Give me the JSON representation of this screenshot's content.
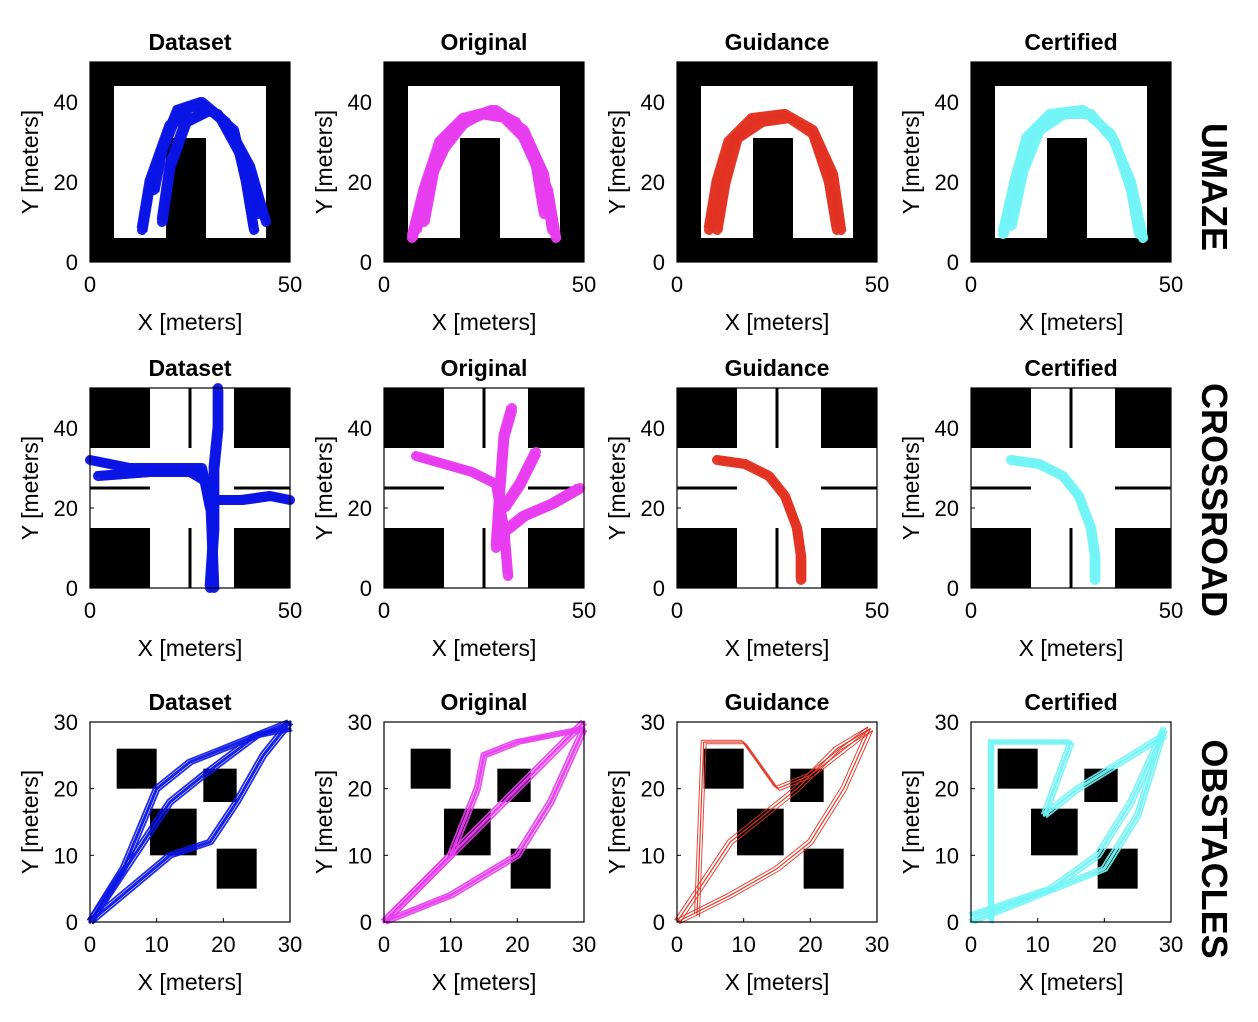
{
  "colors": {
    "dataset": "#0a14e6",
    "original": "#e83cf0",
    "guidance": "#e23222",
    "certified": "#72f4f6",
    "obstacle": "#000000"
  },
  "rows": [
    {
      "label": "UMAZE",
      "env": "umaze",
      "x_ticks": [
        "0",
        "50"
      ],
      "y_ticks": [
        "0",
        "20",
        "40"
      ],
      "xlim": [
        0,
        50
      ],
      "ylim": [
        0,
        50
      ]
    },
    {
      "label": "CROSSROAD",
      "env": "crossroad",
      "x_ticks": [
        "0",
        "50"
      ],
      "y_ticks": [
        "0",
        "20",
        "40"
      ],
      "xlim": [
        0,
        50
      ],
      "ylim": [
        0,
        50
      ]
    },
    {
      "label": "OBSTACLES",
      "env": "obstacles",
      "x_ticks": [
        "0",
        "10",
        "20",
        "30"
      ],
      "y_ticks": [
        "0",
        "10",
        "20",
        "30"
      ],
      "xlim": [
        0,
        30
      ],
      "ylim": [
        0,
        30
      ]
    }
  ],
  "chart_data": [
    {
      "type": "line",
      "environment": "UMAZE",
      "title": "Dataset",
      "series_color": "#0a14e6",
      "xlabel": "X [meters]",
      "ylabel": "Y [meters]",
      "xlim": [
        0,
        50
      ],
      "ylim": [
        0,
        50
      ],
      "obstacles": [
        [
          0,
          0,
          50,
          6
        ],
        [
          0,
          44,
          50,
          50
        ],
        [
          0,
          0,
          6,
          50
        ],
        [
          44,
          0,
          50,
          50
        ],
        [
          19,
          6,
          29,
          31
        ]
      ],
      "series": [
        {
          "x": [
            13,
            15,
            20,
            25,
            32,
            38,
            42
          ],
          "y": [
            8,
            20,
            34,
            39,
            37,
            26,
            12
          ]
        },
        {
          "x": [
            16,
            18,
            22,
            28,
            34,
            40,
            44
          ],
          "y": [
            18,
            28,
            38,
            40,
            35,
            24,
            10
          ]
        },
        {
          "x": [
            18,
            20,
            24,
            30,
            36,
            39,
            41
          ],
          "y": [
            10,
            24,
            35,
            38,
            33,
            20,
            8
          ]
        }
      ]
    },
    {
      "type": "line",
      "environment": "UMAZE",
      "title": "Original",
      "series_color": "#e83cf0",
      "xlabel": "X [meters]",
      "ylabel": "Y [meters]",
      "xlim": [
        0,
        50
      ],
      "ylim": [
        0,
        50
      ],
      "obstacles": [
        [
          0,
          0,
          50,
          6
        ],
        [
          0,
          44,
          50,
          50
        ],
        [
          0,
          0,
          6,
          50
        ],
        [
          44,
          0,
          50,
          50
        ],
        [
          19,
          6,
          29,
          31
        ]
      ],
      "series": [
        {
          "x": [
            7,
            10,
            14,
            20,
            28,
            35,
            40,
            42
          ],
          "y": [
            6,
            18,
            30,
            36,
            38,
            33,
            22,
            8
          ]
        },
        {
          "x": [
            8,
            12,
            17,
            24,
            30,
            36,
            41,
            43
          ],
          "y": [
            8,
            22,
            33,
            37,
            36,
            30,
            18,
            6
          ]
        },
        {
          "x": [
            10,
            13,
            20,
            27,
            33,
            38,
            40
          ],
          "y": [
            10,
            26,
            35,
            38,
            35,
            24,
            12
          ]
        }
      ]
    },
    {
      "type": "line",
      "environment": "UMAZE",
      "title": "Guidance",
      "series_color": "#e23222",
      "xlabel": "X [meters]",
      "ylabel": "Y [meters]",
      "xlim": [
        0,
        50
      ],
      "ylim": [
        0,
        50
      ],
      "obstacles": [
        [
          0,
          0,
          50,
          6
        ],
        [
          0,
          44,
          50,
          50
        ],
        [
          0,
          0,
          6,
          50
        ],
        [
          44,
          0,
          50,
          50
        ],
        [
          19,
          6,
          29,
          31
        ]
      ],
      "series": [
        {
          "x": [
            8,
            10,
            13,
            19,
            27,
            34,
            39,
            41
          ],
          "y": [
            8,
            20,
            30,
            36,
            37,
            33,
            22,
            8
          ]
        },
        {
          "x": [
            10,
            12,
            15,
            21,
            28,
            34,
            38,
            40
          ],
          "y": [
            8,
            20,
            31,
            35,
            36,
            32,
            20,
            8
          ]
        }
      ]
    },
    {
      "type": "line",
      "environment": "UMAZE",
      "title": "Certified",
      "series_color": "#72f4f6",
      "xlabel": "X [meters]",
      "ylabel": "Y [meters]",
      "xlim": [
        0,
        50
      ],
      "ylim": [
        0,
        50
      ],
      "obstacles": [
        [
          0,
          0,
          50,
          6
        ],
        [
          0,
          44,
          50,
          50
        ],
        [
          0,
          0,
          6,
          50
        ],
        [
          44,
          0,
          50,
          50
        ],
        [
          19,
          6,
          29,
          31
        ]
      ],
      "series": [
        {
          "x": [
            8,
            11,
            14,
            20,
            28,
            35,
            40,
            43
          ],
          "y": [
            7,
            20,
            31,
            37,
            38,
            32,
            20,
            6
          ]
        },
        {
          "x": [
            10,
            13,
            17,
            23,
            30,
            36,
            40,
            42
          ],
          "y": [
            9,
            23,
            33,
            37,
            37,
            30,
            18,
            7
          ]
        }
      ]
    },
    {
      "type": "line",
      "environment": "CROSSROAD",
      "title": "Dataset",
      "series_color": "#0a14e6",
      "xlabel": "X [meters]",
      "ylabel": "Y [meters]",
      "xlim": [
        0,
        50
      ],
      "ylim": [
        0,
        50
      ],
      "obstacles": [
        [
          0,
          0,
          15,
          15
        ],
        [
          36,
          0,
          50,
          15
        ],
        [
          0,
          35,
          15,
          50
        ],
        [
          36,
          35,
          50,
          50
        ]
      ],
      "series": [
        {
          "x": [
            0,
            10,
            20,
            28,
            30
          ],
          "y": [
            32,
            30,
            30,
            30,
            20
          ]
        },
        {
          "x": [
            30,
            31,
            31,
            32,
            32
          ],
          "y": [
            0,
            15,
            30,
            40,
            50
          ]
        },
        {
          "x": [
            30,
            38,
            45,
            50
          ],
          "y": [
            22,
            22,
            23,
            22
          ]
        },
        {
          "x": [
            2,
            15,
            25,
            30,
            31
          ],
          "y": [
            28,
            29,
            29,
            26,
            0
          ]
        }
      ]
    },
    {
      "type": "line",
      "environment": "CROSSROAD",
      "title": "Original",
      "series_color": "#e83cf0",
      "xlabel": "X [meters]",
      "ylabel": "Y [meters]",
      "xlim": [
        0,
        50
      ],
      "ylim": [
        0,
        50
      ],
      "obstacles": [
        [
          0,
          0,
          15,
          15
        ],
        [
          36,
          0,
          50,
          15
        ],
        [
          0,
          35,
          15,
          50
        ],
        [
          36,
          35,
          50,
          50
        ]
      ],
      "series": [
        {
          "x": [
            8,
            15,
            22,
            28,
            30,
            31
          ],
          "y": [
            33,
            31,
            29,
            26,
            15,
            3
          ]
        },
        {
          "x": [
            28,
            29,
            30,
            32
          ],
          "y": [
            10,
            25,
            38,
            45
          ]
        },
        {
          "x": [
            30,
            35,
            42,
            49
          ],
          "y": [
            14,
            18,
            21,
            25
          ]
        },
        {
          "x": [
            30,
            34,
            38
          ],
          "y": [
            20,
            26,
            34
          ]
        }
      ]
    },
    {
      "type": "line",
      "environment": "CROSSROAD",
      "title": "Guidance",
      "series_color": "#e23222",
      "xlabel": "X [meters]",
      "ylabel": "Y [meters]",
      "xlim": [
        0,
        50
      ],
      "ylim": [
        0,
        50
      ],
      "obstacles": [
        [
          0,
          0,
          15,
          15
        ],
        [
          36,
          0,
          50,
          15
        ],
        [
          0,
          35,
          15,
          50
        ],
        [
          36,
          35,
          50,
          50
        ]
      ],
      "series": [
        {
          "x": [
            10,
            17,
            23,
            27,
            30,
            31,
            31
          ],
          "y": [
            32,
            31,
            28,
            23,
            15,
            8,
            2
          ]
        }
      ]
    },
    {
      "type": "line",
      "environment": "CROSSROAD",
      "title": "Certified",
      "series_color": "#72f4f6",
      "xlabel": "X [meters]",
      "ylabel": "Y [meters]",
      "xlim": [
        0,
        50
      ],
      "ylim": [
        0,
        50
      ],
      "obstacles": [
        [
          0,
          0,
          15,
          15
        ],
        [
          36,
          0,
          50,
          15
        ],
        [
          0,
          35,
          15,
          50
        ],
        [
          36,
          35,
          50,
          50
        ]
      ],
      "series": [
        {
          "x": [
            10,
            17,
            23,
            27,
            30,
            31,
            31
          ],
          "y": [
            32,
            31,
            28,
            23,
            15,
            8,
            2
          ]
        }
      ]
    },
    {
      "type": "line",
      "environment": "OBSTACLES",
      "title": "Dataset",
      "series_color": "#0a14e6",
      "xlabel": "X [meters]",
      "ylabel": "Y [meters]",
      "xlim": [
        0,
        30
      ],
      "ylim": [
        0,
        30
      ],
      "obstacles": [
        [
          4,
          20,
          10,
          26
        ],
        [
          9,
          10,
          16,
          17
        ],
        [
          17,
          18,
          22,
          23
        ],
        [
          19,
          5,
          25,
          11
        ]
      ],
      "series": [
        {
          "x": [
            0,
            5,
            10,
            15,
            20,
            25,
            30
          ],
          "y": [
            0,
            8,
            20,
            24,
            26,
            28,
            30
          ]
        },
        {
          "x": [
            0,
            6,
            12,
            18,
            22,
            26,
            30
          ],
          "y": [
            0,
            5,
            10,
            12,
            18,
            25,
            30
          ]
        },
        {
          "x": [
            0,
            8,
            12,
            17,
            25,
            30
          ],
          "y": [
            0,
            12,
            18,
            22,
            28,
            29
          ]
        }
      ]
    },
    {
      "type": "line",
      "environment": "OBSTACLES",
      "title": "Original",
      "series_color": "#e83cf0",
      "xlabel": "X [meters]",
      "ylabel": "Y [meters]",
      "xlim": [
        0,
        30
      ],
      "ylim": [
        0,
        30
      ],
      "obstacles": [
        [
          4,
          20,
          10,
          26
        ],
        [
          9,
          10,
          16,
          17
        ],
        [
          17,
          18,
          22,
          23
        ],
        [
          19,
          5,
          25,
          11
        ]
      ],
      "series": [
        {
          "x": [
            0,
            6,
            12,
            18,
            24,
            30
          ],
          "y": [
            0,
            6,
            12,
            18,
            24,
            30
          ]
        },
        {
          "x": [
            0,
            10,
            14,
            15,
            20,
            30
          ],
          "y": [
            0,
            10,
            20,
            25,
            27,
            29
          ]
        },
        {
          "x": [
            0,
            10,
            20,
            25,
            30
          ],
          "y": [
            0,
            4,
            10,
            18,
            29
          ]
        }
      ]
    },
    {
      "type": "line",
      "environment": "OBSTACLES",
      "title": "Guidance",
      "series_color": "#e23222",
      "xlabel": "X [meters]",
      "ylabel": "Y [meters]",
      "xlim": [
        0,
        30
      ],
      "ylim": [
        0,
        30
      ],
      "obstacles": [
        [
          4,
          20,
          10,
          26
        ],
        [
          9,
          10,
          16,
          17
        ],
        [
          17,
          18,
          22,
          23
        ],
        [
          19,
          5,
          25,
          11
        ]
      ],
      "series": [
        {
          "x": [
            0,
            4,
            8,
            13,
            18,
            24,
            29
          ],
          "y": [
            0,
            6,
            12,
            16,
            20,
            26,
            29
          ]
        },
        {
          "x": [
            3,
            4,
            10,
            15,
            20,
            29
          ],
          "y": [
            1,
            27,
            27,
            20,
            22,
            29
          ]
        },
        {
          "x": [
            0,
            8,
            15,
            20,
            25,
            29
          ],
          "y": [
            0,
            4,
            8,
            12,
            20,
            29
          ]
        }
      ]
    },
    {
      "type": "line",
      "environment": "OBSTACLES",
      "title": "Certified",
      "series_color": "#72f4f6",
      "xlabel": "X [meters]",
      "ylabel": "Y [meters]",
      "xlim": [
        0,
        30
      ],
      "ylim": [
        0,
        30
      ],
      "obstacles": [
        [
          4,
          20,
          10,
          26
        ],
        [
          9,
          10,
          16,
          17
        ],
        [
          17,
          18,
          22,
          23
        ],
        [
          19,
          5,
          25,
          11
        ]
      ],
      "series": [
        {
          "x": [
            0,
            10,
            20,
            25,
            29
          ],
          "y": [
            0,
            4,
            8,
            16,
            29
          ]
        },
        {
          "x": [
            3,
            3,
            15,
            11,
            16,
            29
          ],
          "y": [
            0,
            27,
            27,
            16,
            20,
            28
          ]
        },
        {
          "x": [
            0,
            12,
            19,
            24,
            29
          ],
          "y": [
            1,
            5,
            10,
            18,
            29
          ]
        }
      ]
    }
  ]
}
